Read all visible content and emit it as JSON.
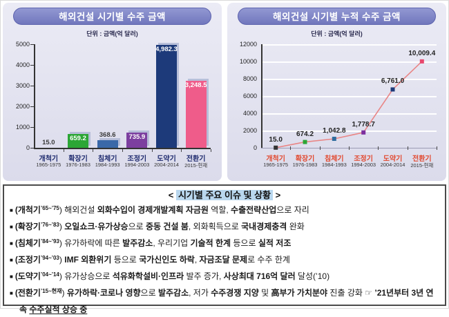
{
  "chart_data": [
    {
      "type": "bar",
      "title": "해외건설 시기별 수주 금액",
      "unit": "단위 : 금액(억 달러)",
      "categories": [
        "개척기",
        "확장기",
        "침체기",
        "조정기",
        "도약기",
        "전환기"
      ],
      "category_years": [
        "1965-1975",
        "1976-1983",
        "1984-1993",
        "1994-2003",
        "2004-2014",
        "2015-현재"
      ],
      "values": [
        15.0,
        659.2,
        368.6,
        735.9,
        4982.3,
        3248.5
      ],
      "value_labels": [
        "15.0",
        "659.2",
        "368.6",
        "735.9",
        "4,982.3",
        "3,248.5"
      ],
      "bar_colors": [
        null,
        "#2ca636",
        "#3a68a8",
        "#7c3f9f",
        "#1d3a7a",
        "#ef5c8a"
      ],
      "ylim": [
        0,
        5000
      ],
      "yticks": [
        0,
        1000,
        2000,
        3000,
        4000,
        5000
      ],
      "grid": false,
      "xlabel_color": "#1e2a6e",
      "legend": "none"
    },
    {
      "type": "line",
      "title": "해외건설 시기별 누적 수주 금액",
      "unit": "단위 : 금액(억 달러)",
      "categories": [
        "개척기",
        "확장기",
        "침체기",
        "조정기",
        "도약기",
        "전환기"
      ],
      "category_years": [
        "1965-1975",
        "1976-1983",
        "1984-1993",
        "1994-2003",
        "2004-2014",
        "2015-현재"
      ],
      "values": [
        15.0,
        674.2,
        1042.8,
        1778.7,
        6761.0,
        10009.4
      ],
      "value_labels": [
        "15.0",
        "674.2",
        "1,042.8",
        "1,778.7",
        "6,761.0",
        "10,009.4"
      ],
      "line_color": "#e98585",
      "marker_colors": [
        "#333333",
        "#2ca636",
        "#2f6d9e",
        "#7c2f9f",
        "#1d3a7a",
        "#e8486e"
      ],
      "ylim": [
        0,
        12000
      ],
      "yticks": [
        0,
        2000,
        4000,
        6000,
        8000,
        10000,
        12000
      ],
      "grid": true,
      "xlabel_color": "#e2492f",
      "legend": "none"
    }
  ],
  "issues_box": {
    "heading_open": "<",
    "heading": "시기별 주요 이슈 및 상황",
    "heading_close": ">",
    "bullet_marker": "■",
    "bullets": [
      {
        "segments": [
          {
            "t": "(개척기",
            "b": 1
          },
          {
            "t": "’65~’75",
            "b": 1,
            "sup": 1
          },
          {
            "t": ") 해외건설 "
          },
          {
            "t": "외화수입이 경제개발계획 자금원",
            "b": 1
          },
          {
            "t": " 역할, "
          },
          {
            "t": "수출전략산업",
            "b": 1
          },
          {
            "t": "으로 자리"
          }
        ]
      },
      {
        "segments": [
          {
            "t": "(확장기",
            "b": 1
          },
          {
            "t": "’76~’83",
            "b": 1,
            "sup": 1
          },
          {
            "t": ") "
          },
          {
            "t": "오일쇼크·유가상승",
            "b": 1
          },
          {
            "t": "으로 "
          },
          {
            "t": "중동 건설 붐",
            "b": 1
          },
          {
            "t": ", 외화획득으로 "
          },
          {
            "t": "국내경제충격",
            "b": 1
          },
          {
            "t": " 완화"
          }
        ]
      },
      {
        "segments": [
          {
            "t": "(침체기",
            "b": 1
          },
          {
            "t": "’84~’93",
            "b": 1,
            "sup": 1
          },
          {
            "t": ") 유가하락에 따른 "
          },
          {
            "t": "발주감소",
            "b": 1
          },
          {
            "t": ", 우리기업 "
          },
          {
            "t": "기술적 한계",
            "b": 1
          },
          {
            "t": " 등으로 "
          },
          {
            "t": "실적 저조",
            "b": 1
          }
        ]
      },
      {
        "segments": [
          {
            "t": "(조정기",
            "b": 1
          },
          {
            "t": "’94~’03",
            "b": 1,
            "sup": 1
          },
          {
            "t": ") "
          },
          {
            "t": "IMF 외환위기",
            "b": 1
          },
          {
            "t": " 등으로 "
          },
          {
            "t": "국가신인도 하락",
            "b": 1
          },
          {
            "t": ", "
          },
          {
            "t": "자금조달 문제",
            "b": 1
          },
          {
            "t": "로 수주 한계"
          }
        ]
      },
      {
        "segments": [
          {
            "t": "(도약기",
            "b": 1
          },
          {
            "t": "’04~’14",
            "b": 1,
            "sup": 1
          },
          {
            "t": ") 유가상승으로 "
          },
          {
            "t": "석유화학설비·인프라",
            "b": 1
          },
          {
            "t": " 발주 증가, "
          },
          {
            "t": "사상최대 716억 달러",
            "b": 1
          },
          {
            "t": " 달성(’10)"
          }
        ]
      },
      {
        "segments": [
          {
            "t": "(전환기",
            "b": 1
          },
          {
            "t": "’15~현재",
            "b": 1,
            "sup": 1
          },
          {
            "t": ") "
          },
          {
            "t": "유가하락·코로나 영향",
            "b": 1
          },
          {
            "t": "으로 "
          },
          {
            "t": "발주감소",
            "b": 1
          },
          {
            "t": ", 저가 "
          },
          {
            "t": "수주경쟁 지양",
            "b": 1
          },
          {
            "t": " 및 "
          },
          {
            "t": "高부가 가치분야",
            "b": 1
          },
          {
            "t": " 진출 강화 ☞ "
          },
          {
            "t": "’21년부터 3년 연속 ",
            "b": 1
          },
          {
            "t": "수주실적 상승 중",
            "b": 1,
            "u": 1
          }
        ]
      }
    ]
  }
}
